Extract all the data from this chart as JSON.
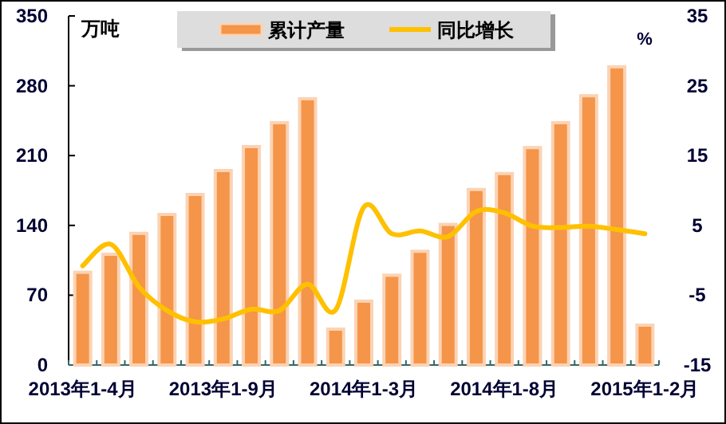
{
  "chart_data": {
    "type": "bar",
    "ylabel": "万吨",
    "y2label": "%",
    "categories": [
      "2013年1-4月",
      null,
      null,
      null,
      null,
      "2013年1-9月",
      null,
      null,
      null,
      null,
      "2014年1-3月",
      null,
      null,
      null,
      null,
      "2014年1-8月",
      null,
      null,
      null,
      null,
      "2015年1-2月"
    ],
    "series": [
      {
        "name": "累计产量",
        "color": "#f4954a",
        "values": [
          93,
          111,
          132,
          151,
          171,
          195,
          219,
          243,
          267,
          36,
          64,
          90,
          114,
          141,
          176,
          192,
          218,
          243,
          270,
          299,
          40
        ]
      },
      {
        "name": "同比增长",
        "type": "line",
        "axis": "y2",
        "color": "#ffc000",
        "values": [
          -0.8,
          2.3,
          -3.8,
          -7.2,
          -8.8,
          -8.4,
          -7.0,
          -7.2,
          -3.4,
          -7.1,
          7.6,
          3.8,
          4.2,
          3.4,
          7.0,
          6.8,
          4.9,
          4.7,
          4.9,
          4.4,
          3.8
        ]
      }
    ],
    "ylim": [
      0,
      350
    ],
    "yticks": [
      0,
      70,
      140,
      210,
      280,
      350
    ],
    "y2lim": [
      -15,
      35
    ],
    "y2ticks": [
      -15,
      -5,
      5,
      15,
      25,
      35
    ],
    "grid": false,
    "legend": "top"
  }
}
